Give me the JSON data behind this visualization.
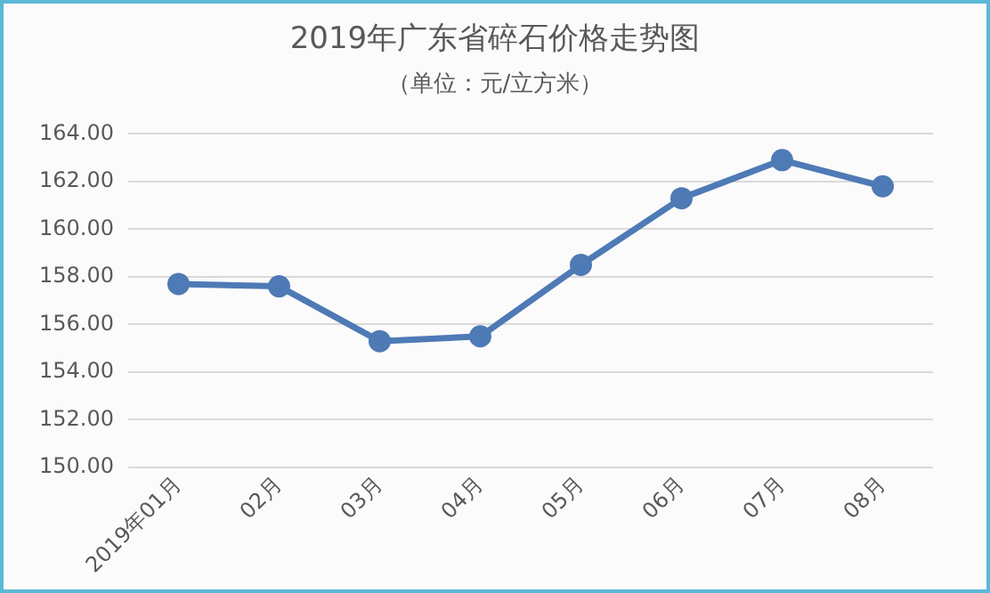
{
  "chart_data": {
    "type": "line",
    "title": "2019年广东省碎石价格走势图",
    "subtitle": "（单位：元/立方米）",
    "categories": [
      "2019年01月",
      "02月",
      "03月",
      "04月",
      "05月",
      "06月",
      "07月",
      "08月"
    ],
    "series": [
      {
        "color": "#4e7ab5",
        "values": [
          157.7,
          157.6,
          155.3,
          155.5,
          158.5,
          161.3,
          162.9,
          161.8
        ]
      }
    ],
    "ylim": [
      150,
      164
    ],
    "yticks": [
      {
        "value": 150,
        "label": "150.00"
      },
      {
        "value": 152,
        "label": "152.00"
      },
      {
        "value": 154,
        "label": "154.00"
      },
      {
        "value": 156,
        "label": "156.00"
      },
      {
        "value": 158,
        "label": "158.00"
      },
      {
        "value": 160,
        "label": "160.00"
      },
      {
        "value": 162,
        "label": "162.00"
      },
      {
        "value": 164,
        "label": "164.00"
      }
    ],
    "grid": "y",
    "legend": false,
    "marker": "circle",
    "line_style": "solid"
  }
}
